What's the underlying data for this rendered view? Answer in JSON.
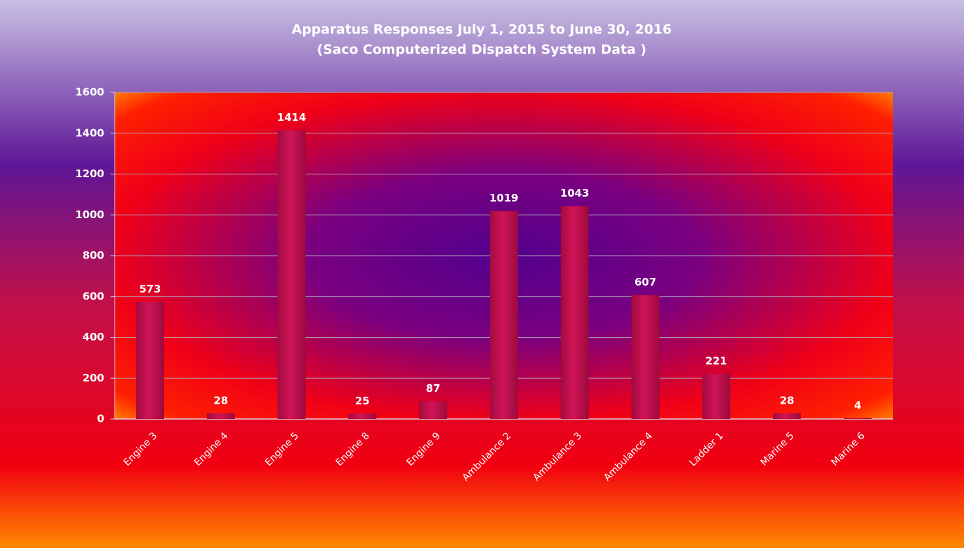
{
  "chart_data": {
    "type": "bar",
    "title": "Apparatus Responses July 1, 2015 to June 30, 2016",
    "subtitle": "(Saco Computerized Dispatch System Data )",
    "categories": [
      "Engine 3",
      "Engine 4",
      "Engine 5",
      "Engine 8",
      "Engine 9",
      "Ambulance 2",
      "Ambulance 3",
      "Ambulance 4",
      "Ladder 1",
      "Marine 5",
      "Marine 6"
    ],
    "values": [
      573,
      28,
      1414,
      25,
      87,
      1019,
      1043,
      607,
      221,
      28,
      4
    ],
    "color": "#d01458",
    "ylim": [
      0,
      1600
    ],
    "yticks": [
      0,
      200,
      400,
      600,
      800,
      1000,
      1200,
      1400,
      1600
    ],
    "grid": true
  }
}
